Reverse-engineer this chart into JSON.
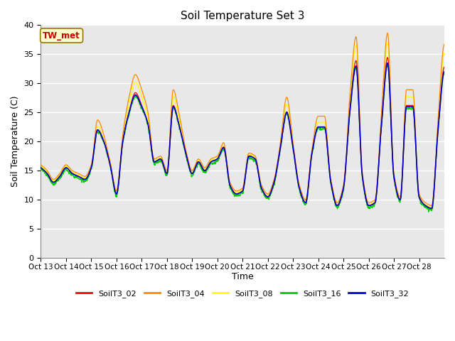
{
  "title": "Soil Temperature Set 3",
  "xlabel": "Time",
  "ylabel": "Soil Temperature (C)",
  "ylim": [
    0,
    40
  ],
  "yticks": [
    0,
    5,
    10,
    15,
    20,
    25,
    30,
    35,
    40
  ],
  "xtick_labels": [
    "Oct 13",
    "Oct 14",
    "Oct 15",
    "Oct 16",
    "Oct 17",
    "Oct 18",
    "Oct 19",
    "Oct 20",
    "Oct 21",
    "Oct 22",
    "Oct 23",
    "Oct 24",
    "Oct 25",
    "Oct 26",
    "Oct 27",
    "Oct 28"
  ],
  "annotation_text": "TW_met",
  "annotation_color": "#cc0000",
  "annotation_bg": "#ffffcc",
  "annotation_border": "#997700",
  "colors": {
    "SoilT3_02": "#ff0000",
    "SoilT3_04": "#ff8800",
    "SoilT3_08": "#ffff00",
    "SoilT3_16": "#00cc00",
    "SoilT3_32": "#0000cc"
  },
  "bg_color": "#e8e8e8",
  "grid_color": "#ffffff"
}
